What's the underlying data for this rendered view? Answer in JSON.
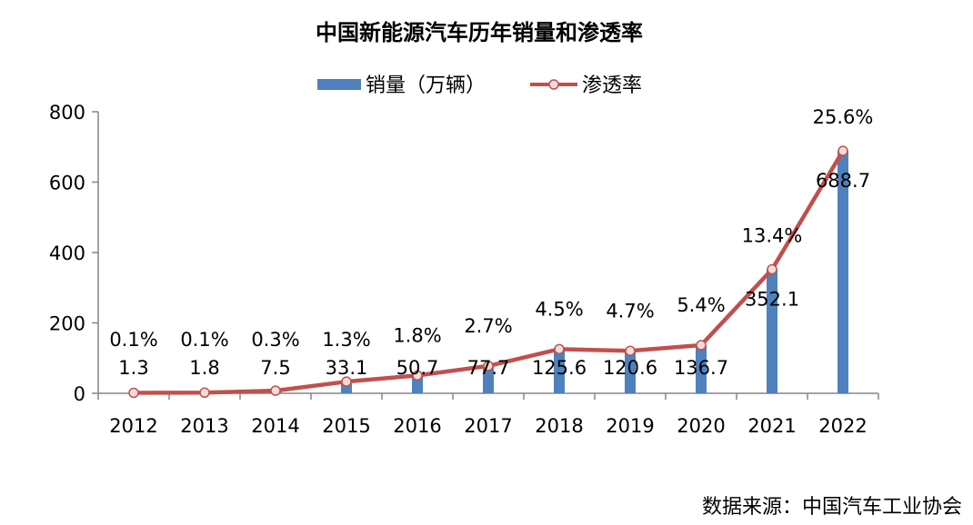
{
  "chart_data": {
    "type": "bar",
    "title": "中国新能源汽车历年销量和渗透率",
    "categories": [
      "2012",
      "2013",
      "2014",
      "2015",
      "2016",
      "2017",
      "2018",
      "2019",
      "2020",
      "2021",
      "2022"
    ],
    "series": [
      {
        "name": "销量（万辆）",
        "kind": "bar",
        "color": "#4f81bd",
        "values": [
          1.3,
          1.8,
          7.5,
          33.1,
          50.7,
          77.7,
          125.6,
          120.6,
          136.7,
          352.1,
          688.7
        ],
        "labels": [
          "1.3",
          "1.8",
          "7.5",
          "33.1",
          "50.7",
          "77.7",
          "125.6",
          "120.6",
          "136.7",
          "352.1",
          "688.7"
        ]
      },
      {
        "name": "渗透率",
        "kind": "line",
        "color": "#c0504d",
        "values": [
          0.1,
          0.1,
          0.3,
          1.3,
          1.8,
          2.7,
          4.5,
          4.7,
          5.4,
          13.4,
          25.6
        ],
        "labels": [
          "0.1%",
          "0.1%",
          "0.3%",
          "1.3%",
          "1.8%",
          "2.7%",
          "4.5%",
          "4.7%",
          "5.4%",
          "13.4%",
          "25.6%"
        ]
      }
    ],
    "ylim": [
      0,
      800
    ],
    "yticks": [
      0,
      200,
      400,
      600,
      800
    ],
    "ytick_labels": [
      "0",
      "200",
      "400",
      "600",
      "800"
    ],
    "legend_position": "top",
    "grid": false
  },
  "source": "数据来源：中国汽车工业协会"
}
